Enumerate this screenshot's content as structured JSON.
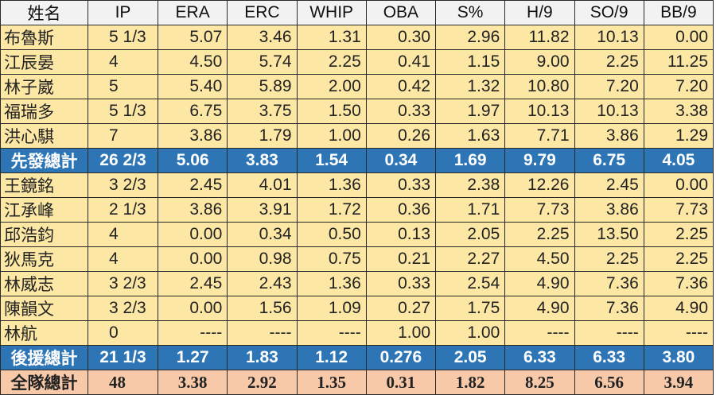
{
  "headers": [
    "姓名",
    "IP",
    "ERA",
    "ERC",
    "WHIP",
    "OBA",
    "S%",
    "H/9",
    "SO/9",
    "BB/9"
  ],
  "rows": [
    {
      "type": "player",
      "cells": [
        "布魯斯",
        "5 1/3",
        "5.07",
        "3.46",
        "1.31",
        "0.30",
        "2.96",
        "11.82",
        "10.13",
        "0.00"
      ]
    },
    {
      "type": "player",
      "cells": [
        "江辰晏",
        "4",
        "4.50",
        "5.74",
        "2.25",
        "0.41",
        "1.15",
        "9.00",
        "2.25",
        "11.25"
      ]
    },
    {
      "type": "player",
      "cells": [
        "林子崴",
        "5",
        "5.40",
        "5.89",
        "2.00",
        "0.42",
        "1.32",
        "10.80",
        "7.20",
        "7.20"
      ]
    },
    {
      "type": "player",
      "cells": [
        "福瑞多",
        "5 1/3",
        "6.75",
        "3.75",
        "1.50",
        "0.33",
        "1.97",
        "10.13",
        "10.13",
        "3.38"
      ]
    },
    {
      "type": "player",
      "cells": [
        "洪心騏",
        "7",
        "3.86",
        "1.79",
        "1.00",
        "0.26",
        "1.63",
        "7.71",
        "3.86",
        "1.29"
      ]
    },
    {
      "type": "sub",
      "cells": [
        "先發總計",
        "26 2/3",
        "5.06",
        "3.83",
        "1.54",
        "0.34",
        "1.69",
        "9.79",
        "6.75",
        "4.05"
      ]
    },
    {
      "type": "player",
      "cells": [
        "王鏡銘",
        "3 2/3",
        "2.45",
        "4.01",
        "1.36",
        "0.33",
        "2.38",
        "12.26",
        "2.45",
        "0.00"
      ]
    },
    {
      "type": "player",
      "cells": [
        "江承峰",
        "2 1/3",
        "3.86",
        "3.91",
        "1.72",
        "0.36",
        "1.71",
        "7.73",
        "3.86",
        "7.73"
      ]
    },
    {
      "type": "player",
      "cells": [
        "邱浩鈞",
        "4",
        "0.00",
        "0.34",
        "0.50",
        "0.13",
        "2.05",
        "2.25",
        "13.50",
        "2.25"
      ]
    },
    {
      "type": "player",
      "cells": [
        "狄馬克",
        "4",
        "0.00",
        "0.98",
        "0.75",
        "0.21",
        "2.27",
        "4.50",
        "2.25",
        "2.25"
      ]
    },
    {
      "type": "player",
      "cells": [
        "林威志",
        "3 2/3",
        "2.45",
        "2.43",
        "1.36",
        "0.33",
        "2.54",
        "4.90",
        "7.36",
        "7.36"
      ]
    },
    {
      "type": "player",
      "cells": [
        "陳韻文",
        "3 2/3",
        "0.00",
        "1.56",
        "1.09",
        "0.27",
        "1.75",
        "4.90",
        "7.36",
        "4.90"
      ]
    },
    {
      "type": "player",
      "cells": [
        "林航",
        "0",
        "----",
        "----",
        "----",
        "1.00",
        "1.00",
        "----",
        "----",
        "----"
      ]
    },
    {
      "type": "sub",
      "cells": [
        "後援總計",
        "21 1/3",
        "1.27",
        "1.83",
        "1.12",
        "0.276",
        "2.05",
        "6.33",
        "6.33",
        "3.80"
      ]
    },
    {
      "type": "team",
      "cells": [
        "全隊總計",
        "48",
        "3.38",
        "2.92",
        "1.35",
        "0.31",
        "1.82",
        "8.25",
        "6.56",
        "3.94"
      ]
    }
  ],
  "colors": {
    "header": "#f2f2f2",
    "player": "#fde7a4",
    "subtotal": "#2e75b6",
    "team": "#f7c9a9"
  }
}
